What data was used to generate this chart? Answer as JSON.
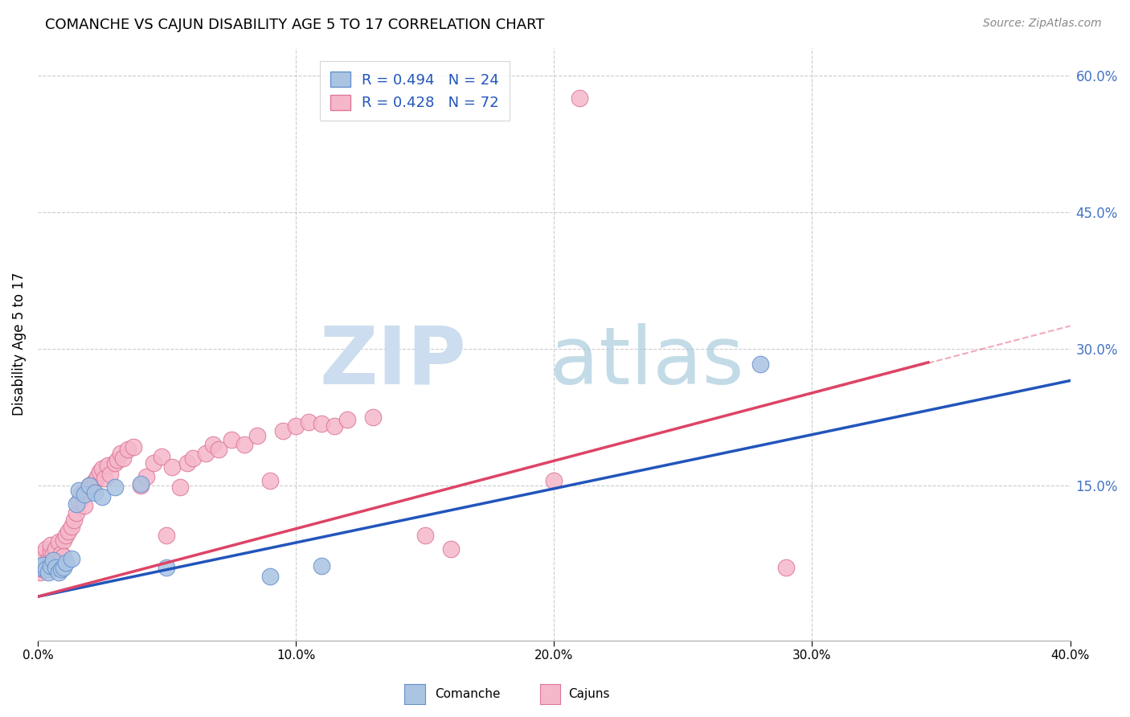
{
  "title": "COMANCHE VS CAJUN DISABILITY AGE 5 TO 17 CORRELATION CHART",
  "source": "Source: ZipAtlas.com",
  "ylabel": "Disability Age 5 to 17",
  "xmin": 0.0,
  "xmax": 0.4,
  "ymin": -0.02,
  "ymax": 0.63,
  "comanche_color": "#aac4e2",
  "cajun_color": "#f5b8ca",
  "comanche_line_color": "#2255bb",
  "cajun_line_color": "#dd4466",
  "comanche_marker_edge": "#6690cc",
  "cajun_marker_edge": "#dd7799",
  "background_color": "#ffffff",
  "grid_color": "#cccccc",
  "comanche_x": [
    0.001,
    0.002,
    0.003,
    0.004,
    0.005,
    0.006,
    0.007,
    0.008,
    0.009,
    0.01,
    0.011,
    0.013,
    0.015,
    0.016,
    0.018,
    0.02,
    0.022,
    0.025,
    0.03,
    0.04,
    0.05,
    0.09,
    0.11,
    0.28
  ],
  "comanche_y": [
    0.06,
    0.063,
    0.058,
    0.055,
    0.062,
    0.068,
    0.06,
    0.055,
    0.058,
    0.06,
    0.065,
    0.07,
    0.13,
    0.145,
    0.14,
    0.15,
    0.142,
    0.138,
    0.148,
    0.152,
    0.06,
    0.05,
    0.062,
    0.283
  ],
  "cajun_x": [
    0.001,
    0.001,
    0.002,
    0.002,
    0.003,
    0.003,
    0.004,
    0.004,
    0.005,
    0.005,
    0.005,
    0.006,
    0.006,
    0.007,
    0.007,
    0.008,
    0.008,
    0.009,
    0.01,
    0.01,
    0.011,
    0.012,
    0.013,
    0.014,
    0.015,
    0.016,
    0.017,
    0.018,
    0.019,
    0.02,
    0.021,
    0.022,
    0.023,
    0.024,
    0.025,
    0.026,
    0.027,
    0.028,
    0.03,
    0.031,
    0.032,
    0.033,
    0.035,
    0.037,
    0.04,
    0.042,
    0.045,
    0.048,
    0.05,
    0.052,
    0.055,
    0.058,
    0.06,
    0.065,
    0.068,
    0.07,
    0.075,
    0.08,
    0.085,
    0.09,
    0.095,
    0.1,
    0.105,
    0.11,
    0.115,
    0.12,
    0.13,
    0.15,
    0.16,
    0.2,
    0.29,
    0.21
  ],
  "cajun_y": [
    0.055,
    0.07,
    0.058,
    0.075,
    0.062,
    0.08,
    0.058,
    0.068,
    0.062,
    0.078,
    0.085,
    0.065,
    0.075,
    0.068,
    0.08,
    0.065,
    0.088,
    0.075,
    0.072,
    0.09,
    0.095,
    0.1,
    0.105,
    0.112,
    0.12,
    0.132,
    0.14,
    0.128,
    0.145,
    0.15,
    0.148,
    0.155,
    0.16,
    0.165,
    0.168,
    0.158,
    0.172,
    0.162,
    0.175,
    0.178,
    0.185,
    0.18,
    0.19,
    0.192,
    0.15,
    0.16,
    0.175,
    0.182,
    0.095,
    0.17,
    0.148,
    0.175,
    0.18,
    0.185,
    0.195,
    0.19,
    0.2,
    0.195,
    0.205,
    0.155,
    0.21,
    0.215,
    0.22,
    0.218,
    0.215,
    0.222,
    0.225,
    0.095,
    0.08,
    0.155,
    0.06,
    0.575
  ],
  "blue_line_x": [
    0.0,
    0.4
  ],
  "blue_line_y": [
    0.028,
    0.265
  ],
  "pink_line_x": [
    0.0,
    0.345
  ],
  "pink_line_y": [
    0.028,
    0.285
  ],
  "dashed_line_x": [
    0.295,
    0.4
  ],
  "dashed_line_y": [
    0.247,
    0.325
  ]
}
